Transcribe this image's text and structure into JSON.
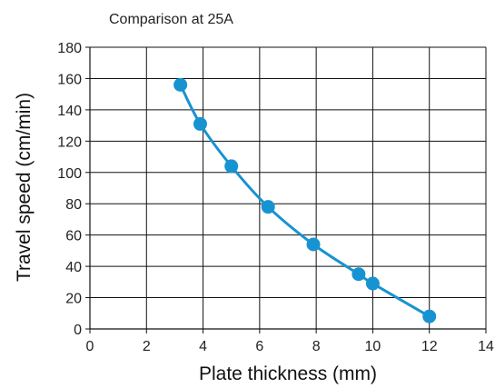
{
  "chart_data": {
    "type": "line",
    "subtitle": "Comparison at 25A",
    "xlabel": "Plate thickness (mm)",
    "ylabel": "Travel speed (cm/min)",
    "xlim": [
      0,
      14
    ],
    "ylim": [
      0,
      180
    ],
    "xticks": [
      0,
      2,
      4,
      6,
      8,
      10,
      12,
      14
    ],
    "yticks": [
      0,
      20,
      40,
      60,
      80,
      100,
      120,
      140,
      160,
      180
    ],
    "grid": true,
    "series": [
      {
        "x": [
          3.2,
          3.9,
          5.0,
          6.3,
          7.9,
          9.5,
          10.0,
          12.0
        ],
        "y": [
          156,
          131,
          104,
          78,
          54,
          35,
          29,
          8
        ],
        "color": "#1793d1"
      }
    ]
  }
}
